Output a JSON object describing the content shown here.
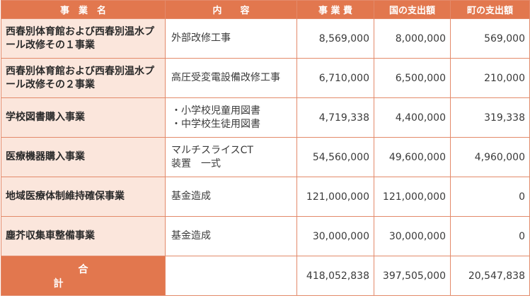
{
  "header": {
    "name": "事　業　名",
    "content": "内　　容",
    "cost": "事 業 費",
    "national": "国の支出額",
    "town": "町の支出額"
  },
  "rows": [
    {
      "name": "西春別体育館および西春別温水プール改修その１事業",
      "content": "外部改修工事",
      "cost": "8,569,000",
      "national": "8,000,000",
      "town": "569,000"
    },
    {
      "name": "西春別体育館および西春別温水プール改修その２事業",
      "content": "高圧受変電設備改修工事",
      "cost": "6,710,000",
      "national": "6,500,000",
      "town": "210,000"
    },
    {
      "name": "学校図書購入事業",
      "content": "・小学校児童用図書\n・中学校生徒用図書",
      "cost": "4,719,338",
      "national": "4,400,000",
      "town": "319,338"
    },
    {
      "name": "医療機器購入事業",
      "content": "マルチスライスCT\n装置　一式",
      "cost": "54,560,000",
      "national": "49,600,000",
      "town": "4,960,000"
    },
    {
      "name": "地域医療体制維持確保事業",
      "content": "基金造成",
      "cost": "121,000,000",
      "national": "121,000,000",
      "town": "0"
    },
    {
      "name": "塵芥収集車整備事業",
      "content": "基金造成",
      "cost": "30,000,000",
      "national": "30,000,000",
      "town": "0"
    }
  ],
  "total": {
    "label": "合計",
    "content": "",
    "cost": "418,052,838",
    "national": "397,505,000",
    "town": "20,547,838"
  }
}
